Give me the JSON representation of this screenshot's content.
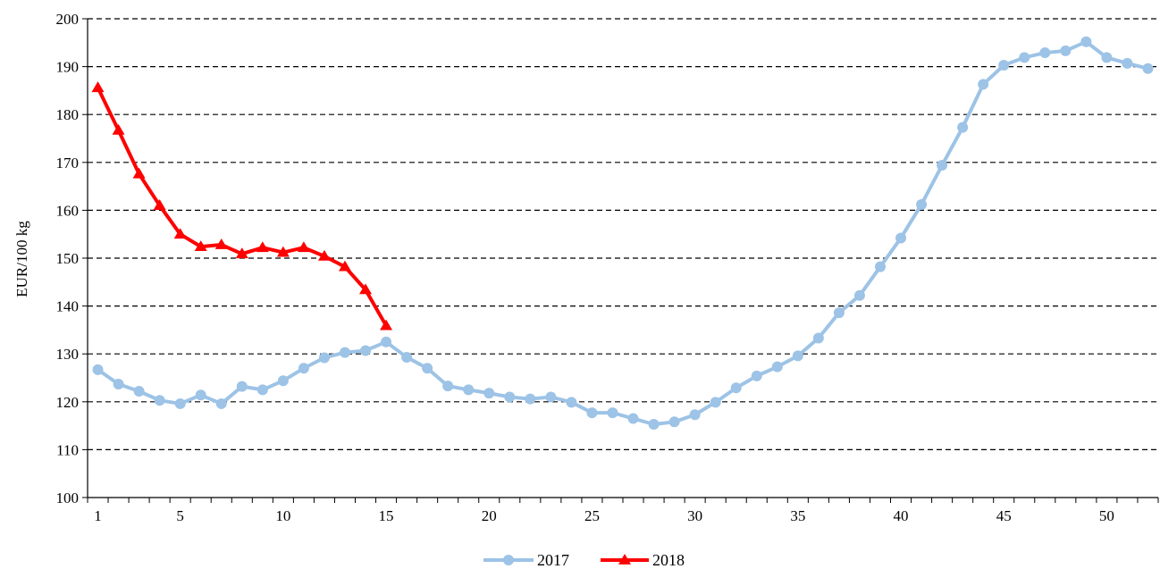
{
  "chart_data": {
    "type": "line",
    "title": "",
    "xlabel": "",
    "ylabel": "EUR/100 kg",
    "ylim": [
      100,
      200
    ],
    "y_ticks": [
      100,
      110,
      120,
      130,
      140,
      150,
      160,
      170,
      180,
      190,
      200
    ],
    "xlim": [
      1,
      52
    ],
    "x_ticks": [
      1,
      5,
      10,
      15,
      20,
      25,
      30,
      35,
      40,
      45,
      50
    ],
    "grid": "horizontal dashed",
    "legend_position": "bottom",
    "series": [
      {
        "name": "2017",
        "color": "#9DC3E6",
        "marker": "circle",
        "x": [
          1,
          2,
          3,
          4,
          5,
          6,
          7,
          8,
          9,
          10,
          11,
          12,
          13,
          14,
          15,
          16,
          17,
          18,
          19,
          20,
          21,
          22,
          23,
          24,
          25,
          26,
          27,
          28,
          29,
          30,
          31,
          32,
          33,
          34,
          35,
          36,
          37,
          38,
          39,
          40,
          41,
          42,
          43,
          44,
          45,
          46,
          47,
          48,
          49,
          50,
          51,
          52
        ],
        "values": [
          126.7,
          123.7,
          122.2,
          120.3,
          119.6,
          121.4,
          119.6,
          123.2,
          122.5,
          124.4,
          127.0,
          129.2,
          130.3,
          130.7,
          132.5,
          129.3,
          127.0,
          123.3,
          122.5,
          121.8,
          121.0,
          120.6,
          121.0,
          119.9,
          117.7,
          117.7,
          116.5,
          115.3,
          115.8,
          117.3,
          119.9,
          122.9,
          125.4,
          127.3,
          129.6,
          133.3,
          138.6,
          142.2,
          148.2,
          154.2,
          161.2,
          169.4,
          177.3,
          186.3,
          190.3,
          191.9,
          192.9,
          193.3,
          195.2,
          191.9,
          190.7,
          189.6
        ]
      },
      {
        "name": "2018",
        "color": "#FF0000",
        "marker": "triangle",
        "x": [
          1,
          2,
          3,
          4,
          5,
          6,
          7,
          8,
          9,
          10,
          11,
          12,
          13,
          14,
          15
        ],
        "values": [
          185.6,
          176.7,
          167.6,
          161.0,
          155.0,
          152.4,
          152.8,
          150.9,
          152.2,
          151.2,
          152.2,
          150.4,
          148.2,
          143.4,
          135.9
        ]
      }
    ]
  }
}
